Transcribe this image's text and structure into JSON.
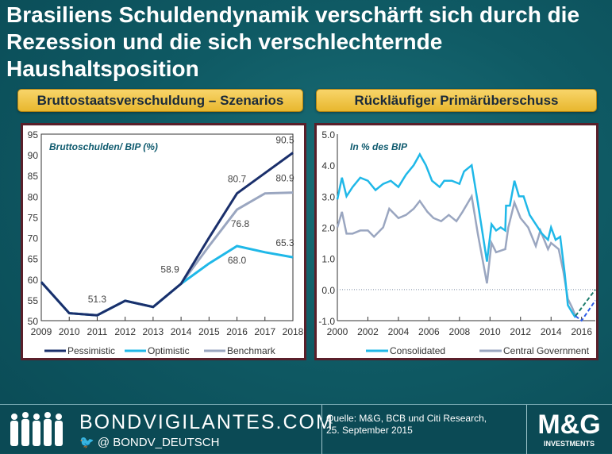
{
  "title": "Brasiliens Schuldendynamik verschärft sich durch die Rezession und die sich verschlechternde Haushaltsposition",
  "headers": {
    "left": "Bruttostaatsverschuldung – Szenarios",
    "right": "Rückläufiger Primärüberschuss"
  },
  "footer": {
    "brand": "BONDVIGILANTES.COM",
    "twitter": "@ BONDV_DEUTSCH",
    "source_line1": "Quelle: M&G, BCB und Citi Research,",
    "source_line2": "25. September 2015",
    "logo": "M&G",
    "logo_sub": "INVESTMENTS"
  },
  "colors": {
    "pessimistic": "#1a2f6b",
    "optimistic": "#1fb8e8",
    "benchmark": "#9aa6c0",
    "consolidated": "#1fb8e8",
    "central": "#9aa6c0",
    "proj_green": "#1a7a6a",
    "proj_blue": "#2a5ae8",
    "title_text": "#0e5a6e"
  },
  "chart_data": [
    {
      "type": "line",
      "title": "Bruttoschulden/  BIP (%)",
      "ylim": [
        50,
        95
      ],
      "yticks": [
        "50",
        "55",
        "60",
        "65",
        "70",
        "75",
        "80",
        "85",
        "90",
        "95"
      ],
      "categories": [
        "2009",
        "2010",
        "2011",
        "2012",
        "2013",
        "2014",
        "2015",
        "2016",
        "2017",
        "2018"
      ],
      "legend_position": "bottom",
      "series": [
        {
          "name": "Pessimistic",
          "key": "pessimistic",
          "values": [
            59.3,
            51.8,
            51.3,
            54.8,
            53.3,
            58.9,
            70.0,
            80.7,
            85.6,
            90.5
          ]
        },
        {
          "name": "Optimistic",
          "key": "optimistic",
          "values": [
            59.3,
            51.8,
            51.3,
            54.8,
            53.3,
            58.9,
            63.8,
            68.0,
            66.5,
            65.3
          ]
        },
        {
          "name": "Benchmark",
          "key": "benchmark",
          "values": [
            59.3,
            51.8,
            51.3,
            54.8,
            53.3,
            58.9,
            68.0,
            76.8,
            80.7,
            80.9
          ]
        }
      ],
      "data_labels": [
        {
          "text": "51.3",
          "i": 2,
          "v": 51.3,
          "dy": -16
        },
        {
          "text": "58.9",
          "i": 5,
          "v": 58.9,
          "dx": -14,
          "dy": -14
        },
        {
          "text": "80.7",
          "i": 7,
          "v": 80.7,
          "dy": -14
        },
        {
          "text": "76.8",
          "i": 7,
          "v": 76.8,
          "dx": 4,
          "dy": 22
        },
        {
          "text": "68.0",
          "i": 7,
          "v": 68.0,
          "dy": 22
        },
        {
          "text": "90.5",
          "i": 9,
          "v": 90.5,
          "dx": -10,
          "dy": -12
        },
        {
          "text": "80.9",
          "i": 9,
          "v": 80.9,
          "dx": -10,
          "dy": -14
        },
        {
          "text": "65.3",
          "i": 9,
          "v": 65.3,
          "dx": -10,
          "dy": -14
        }
      ]
    },
    {
      "type": "line",
      "title": "In % des BIP",
      "xlim": [
        2000,
        2016.9
      ],
      "ylim": [
        -1,
        5
      ],
      "yticks": [
        "-1.0",
        "0.0",
        "1.0",
        "2.0",
        "3.0",
        "4.0",
        "5.0"
      ],
      "xticks": [
        "2000",
        "2002",
        "2004",
        "2006",
        "2008",
        "2010",
        "2012",
        "2014",
        "2016"
      ],
      "legend_position": "bottom",
      "zero_line": true,
      "series": [
        {
          "name": "Consolidated",
          "key": "consolidated",
          "x": [
            2000,
            2000.3,
            2000.6,
            2001,
            2001.5,
            2002,
            2002.5,
            2003,
            2003.5,
            2004,
            2004.5,
            2005,
            2005.4,
            2005.8,
            2006.2,
            2006.7,
            2007,
            2007.5,
            2008,
            2008.3,
            2008.8,
            2009.2,
            2009.8,
            2010.1,
            2010.4,
            2010.7,
            2011,
            2011.05,
            2011.3,
            2011.6,
            2011.9,
            2012.2,
            2012.6,
            2013,
            2013.4,
            2013.8,
            2014,
            2014.3,
            2014.6,
            2014.9,
            2015.1,
            2015.4,
            2015.6
          ],
          "y": [
            2.9,
            3.6,
            3.0,
            3.3,
            3.6,
            3.5,
            3.2,
            3.4,
            3.5,
            3.3,
            3.7,
            4.0,
            4.35,
            4.0,
            3.5,
            3.3,
            3.5,
            3.5,
            3.4,
            3.8,
            4.0,
            2.8,
            0.9,
            2.1,
            1.9,
            2.0,
            1.9,
            2.7,
            2.7,
            3.5,
            3.0,
            3.0,
            2.4,
            2.1,
            1.8,
            1.6,
            2.0,
            1.6,
            1.7,
            0.5,
            -0.5,
            -0.75,
            -0.9
          ]
        },
        {
          "name": "Central Government",
          "key": "central",
          "x": [
            2000,
            2000.3,
            2000.6,
            2001,
            2001.5,
            2002,
            2002.4,
            2003,
            2003.4,
            2004,
            2004.5,
            2005,
            2005.4,
            2005.9,
            2006.3,
            2006.8,
            2007.3,
            2007.8,
            2008.2,
            2008.8,
            2009.2,
            2009.8,
            2010.1,
            2010.4,
            2011,
            2011.2,
            2011.6,
            2012,
            2012.5,
            2013,
            2013.3,
            2013.8,
            2014,
            2014.5,
            2014.8,
            2015.1,
            2015.4,
            2015.6
          ],
          "y": [
            2.0,
            2.5,
            1.8,
            1.8,
            1.9,
            1.9,
            1.7,
            2.0,
            2.6,
            2.3,
            2.4,
            2.6,
            2.85,
            2.5,
            2.3,
            2.2,
            2.4,
            2.2,
            2.5,
            3.0,
            1.8,
            0.2,
            1.5,
            1.2,
            1.3,
            2.0,
            2.8,
            2.3,
            2.0,
            1.4,
            1.9,
            1.3,
            1.5,
            1.3,
            0.6,
            -0.3,
            -0.6,
            -0.85
          ]
        }
      ],
      "projections": [
        {
          "key": "proj_green",
          "x": [
            2015.6,
            2016.9
          ],
          "y": [
            -0.85,
            0.0
          ]
        },
        {
          "key": "proj_blue",
          "x": [
            2015.6,
            2016,
            2016.9
          ],
          "y": [
            -0.85,
            -1.0,
            -0.35
          ]
        }
      ]
    }
  ]
}
